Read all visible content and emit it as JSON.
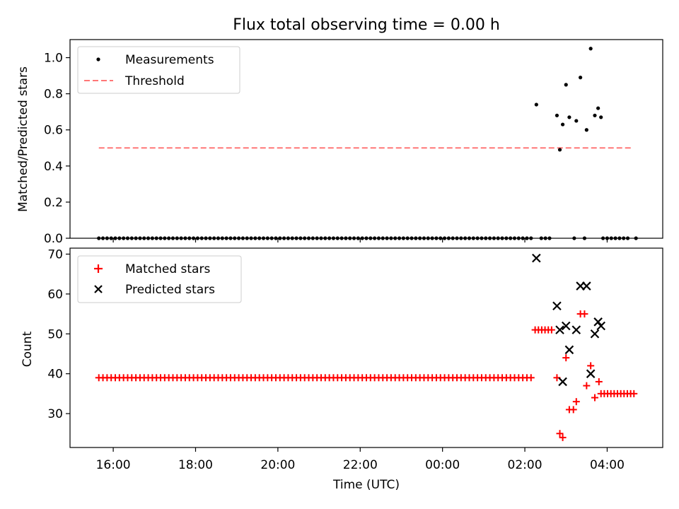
{
  "title": "Flux total observing time = 0.00 h",
  "colors": {
    "threshold": "#ff7777",
    "measurement": "#000000",
    "matched": "#ff0000",
    "predicted": "#000000"
  },
  "chart_data": [
    {
      "type": "scatter",
      "panel": "top",
      "ylabel": "Matched/Predicted stars",
      "ylim": [
        0,
        1.1
      ],
      "yticks": [
        0.0,
        0.2,
        0.4,
        0.6,
        0.8,
        1.0
      ],
      "ytick_labels": [
        "0.0",
        "0.2",
        "0.4",
        "0.6",
        "0.8",
        "1.0"
      ],
      "legend": {
        "placement": "top-left",
        "entries": [
          "Measurements",
          "Threshold"
        ]
      },
      "threshold": {
        "name": "Threshold",
        "y": 0.5,
        "x_start": 15.65,
        "x_end": 4.6
      },
      "measurements": {
        "name": "Measurements",
        "zero_x_start": 15.65,
        "zero_x_end": 2.2,
        "zero_x_step": 0.1,
        "zero_tail": [
          2.4,
          2.5,
          2.6,
          3.2,
          3.45,
          3.9,
          4.0,
          4.1,
          4.2,
          4.3,
          4.4,
          4.5,
          4.7
        ],
        "points": [
          [
            2.28,
            0.74
          ],
          [
            2.78,
            0.68
          ],
          [
            2.85,
            0.49
          ],
          [
            2.92,
            0.63
          ],
          [
            3.0,
            0.85
          ],
          [
            3.08,
            0.67
          ],
          [
            3.25,
            0.65
          ],
          [
            3.35,
            0.89
          ],
          [
            3.5,
            0.6
          ],
          [
            3.6,
            1.05
          ],
          [
            3.7,
            0.68
          ],
          [
            3.78,
            0.72
          ],
          [
            3.85,
            0.67
          ]
        ]
      }
    },
    {
      "type": "scatter",
      "panel": "bottom",
      "xlabel": "Time (UTC)",
      "ylabel": "Count",
      "ylim": [
        21.5,
        71.5
      ],
      "yticks": [
        30,
        40,
        50,
        60,
        70
      ],
      "ytick_labels": [
        "30",
        "40",
        "50",
        "60",
        "70"
      ],
      "xticks": [
        16,
        18,
        20,
        22,
        24,
        26,
        28
      ],
      "xtick_labels": [
        "16:00",
        "18:00",
        "20:00",
        "22:00",
        "00:00",
        "02:00",
        "04:00"
      ],
      "legend": {
        "placement": "top-left",
        "entries": [
          "Matched stars",
          "Predicted stars"
        ]
      },
      "matched": {
        "name": "Matched stars",
        "run1": {
          "x_start": 15.65,
          "x_end": 2.2,
          "x_step": 0.1,
          "y": 39
        },
        "run2": {
          "x_start": 2.25,
          "x_end": 2.7,
          "x_step": 0.08,
          "y": 51
        },
        "run3": {
          "x_start": 3.85,
          "x_end": 4.7,
          "x_step": 0.08,
          "y": 35
        },
        "points": [
          [
            2.78,
            39
          ],
          [
            2.85,
            25
          ],
          [
            2.92,
            24
          ],
          [
            3.0,
            44
          ],
          [
            3.08,
            31
          ],
          [
            3.18,
            31
          ],
          [
            3.25,
            33
          ],
          [
            3.35,
            55
          ],
          [
            3.45,
            55
          ],
          [
            3.5,
            37
          ],
          [
            3.6,
            42
          ],
          [
            3.7,
            34
          ],
          [
            3.8,
            38
          ]
        ]
      },
      "predicted": {
        "name": "Predicted stars",
        "points": [
          [
            2.28,
            69
          ],
          [
            2.78,
            57
          ],
          [
            2.85,
            51
          ],
          [
            2.92,
            38
          ],
          [
            3.0,
            52
          ],
          [
            3.08,
            46
          ],
          [
            3.25,
            51
          ],
          [
            3.35,
            62
          ],
          [
            3.5,
            62
          ],
          [
            3.6,
            40
          ],
          [
            3.7,
            50
          ],
          [
            3.78,
            53
          ],
          [
            3.85,
            52
          ]
        ]
      }
    }
  ]
}
